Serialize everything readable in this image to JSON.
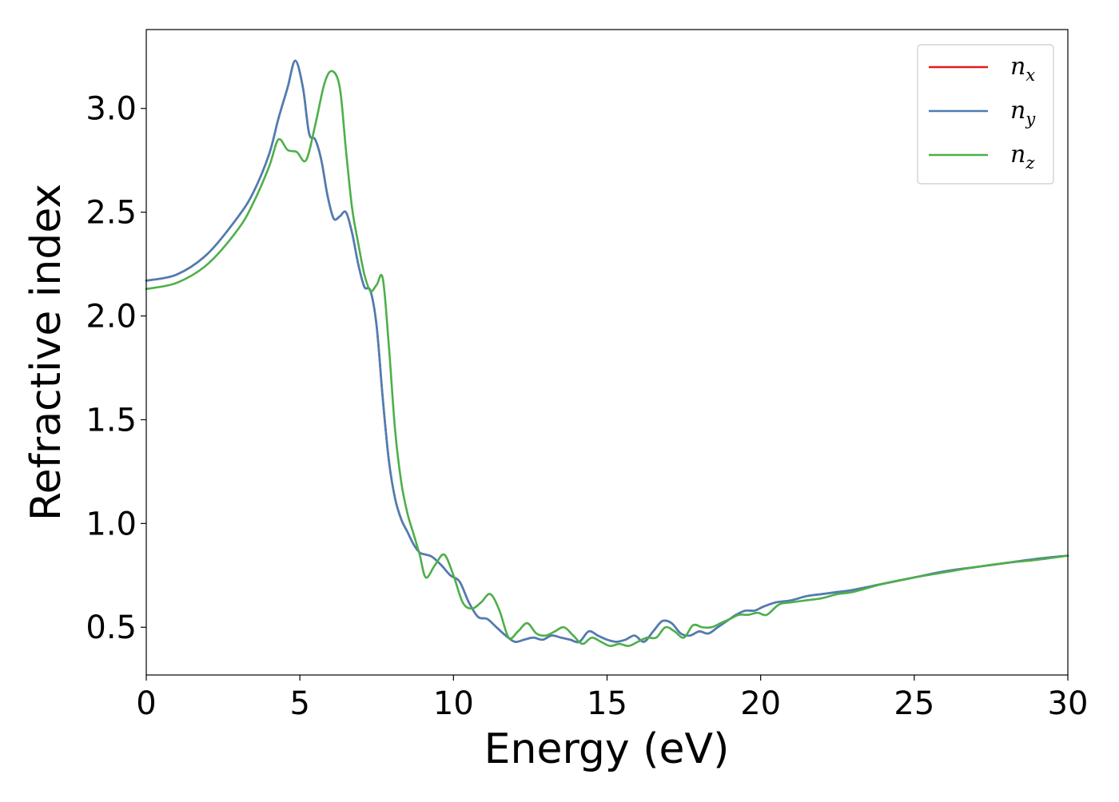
{
  "chart_data": {
    "type": "line",
    "xlabel": "Energy (eV)",
    "ylabel": "Refractive index",
    "xlim": [
      0,
      30
    ],
    "ylim": [
      0.27,
      3.38
    ],
    "x_ticks": [
      0,
      5,
      10,
      15,
      20,
      25,
      30
    ],
    "y_ticks": [
      0.5,
      1.0,
      1.5,
      2.0,
      2.5,
      3.0
    ],
    "x_tick_labels": [
      "0",
      "5",
      "10",
      "15",
      "20",
      "25",
      "30"
    ],
    "y_tick_labels": [
      "0.5",
      "1.0",
      "1.5",
      "2.0",
      "2.5",
      "3.0"
    ],
    "grid": false,
    "legend_position": "top-right",
    "colors": {
      "nx": "#e41a1c",
      "ny": "#4a7fb5",
      "nz": "#4daf4a"
    },
    "series": [
      {
        "name": "n_x",
        "legend_base": "n",
        "legend_sub": "x",
        "color": "#e41a1c",
        "x": [
          0,
          1,
          2,
          3,
          3.5,
          4,
          4.3,
          4.6,
          4.85,
          5.1,
          5.3,
          5.5,
          5.7,
          5.9,
          6.1,
          6.3,
          6.5,
          6.7,
          6.9,
          7.1,
          7.3,
          7.5,
          7.7,
          7.9,
          8.1,
          8.3,
          8.5,
          8.7,
          8.9,
          9.1,
          9.3,
          9.6,
          9.9,
          10.2,
          10.5,
          10.8,
          11.1,
          11.4,
          11.7,
          12.0,
          12.3,
          12.6,
          12.9,
          13.2,
          13.5,
          13.8,
          14.1,
          14.4,
          14.7,
          15.0,
          15.3,
          15.6,
          15.9,
          16.2,
          16.5,
          16.8,
          17.1,
          17.4,
          17.7,
          18.0,
          18.3,
          18.6,
          18.9,
          19.2,
          19.5,
          19.8,
          20.1,
          20.5,
          21.0,
          21.5,
          22.0,
          22.5,
          23.0,
          24.0,
          25.0,
          26.0,
          27.0,
          28.0,
          29.0,
          30.0
        ],
        "values": [
          2.17,
          2.2,
          2.3,
          2.48,
          2.6,
          2.78,
          2.95,
          3.1,
          3.23,
          3.1,
          2.88,
          2.85,
          2.75,
          2.58,
          2.47,
          2.48,
          2.5,
          2.4,
          2.25,
          2.14,
          2.12,
          1.95,
          1.6,
          1.3,
          1.12,
          1.02,
          0.96,
          0.9,
          0.86,
          0.85,
          0.84,
          0.8,
          0.75,
          0.72,
          0.62,
          0.55,
          0.54,
          0.5,
          0.46,
          0.43,
          0.44,
          0.45,
          0.44,
          0.46,
          0.45,
          0.44,
          0.43,
          0.48,
          0.46,
          0.44,
          0.43,
          0.44,
          0.46,
          0.43,
          0.48,
          0.53,
          0.52,
          0.47,
          0.46,
          0.48,
          0.47,
          0.5,
          0.53,
          0.56,
          0.58,
          0.58,
          0.6,
          0.62,
          0.63,
          0.65,
          0.66,
          0.67,
          0.68,
          0.71,
          0.74,
          0.77,
          0.79,
          0.81,
          0.83,
          0.845
        ]
      },
      {
        "name": "n_y",
        "legend_base": "n",
        "legend_sub": "y",
        "color": "#4a7fb5",
        "x": [
          0,
          1,
          2,
          3,
          3.5,
          4,
          4.3,
          4.6,
          4.85,
          5.1,
          5.3,
          5.5,
          5.7,
          5.9,
          6.1,
          6.3,
          6.5,
          6.7,
          6.9,
          7.1,
          7.3,
          7.5,
          7.7,
          7.9,
          8.1,
          8.3,
          8.5,
          8.7,
          8.9,
          9.1,
          9.3,
          9.6,
          9.9,
          10.2,
          10.5,
          10.8,
          11.1,
          11.4,
          11.7,
          12.0,
          12.3,
          12.6,
          12.9,
          13.2,
          13.5,
          13.8,
          14.1,
          14.4,
          14.7,
          15.0,
          15.3,
          15.6,
          15.9,
          16.2,
          16.5,
          16.8,
          17.1,
          17.4,
          17.7,
          18.0,
          18.3,
          18.6,
          18.9,
          19.2,
          19.5,
          19.8,
          20.1,
          20.5,
          21.0,
          21.5,
          22.0,
          22.5,
          23.0,
          24.0,
          25.0,
          26.0,
          27.0,
          28.0,
          29.0,
          30.0
        ],
        "values": [
          2.17,
          2.2,
          2.3,
          2.48,
          2.6,
          2.78,
          2.95,
          3.1,
          3.23,
          3.1,
          2.88,
          2.85,
          2.75,
          2.58,
          2.47,
          2.48,
          2.5,
          2.4,
          2.25,
          2.14,
          2.12,
          1.95,
          1.6,
          1.3,
          1.12,
          1.02,
          0.96,
          0.9,
          0.86,
          0.85,
          0.84,
          0.8,
          0.75,
          0.72,
          0.62,
          0.55,
          0.54,
          0.5,
          0.46,
          0.43,
          0.44,
          0.45,
          0.44,
          0.46,
          0.45,
          0.44,
          0.43,
          0.48,
          0.46,
          0.44,
          0.43,
          0.44,
          0.46,
          0.43,
          0.48,
          0.53,
          0.52,
          0.47,
          0.46,
          0.48,
          0.47,
          0.5,
          0.53,
          0.56,
          0.58,
          0.58,
          0.6,
          0.62,
          0.63,
          0.65,
          0.66,
          0.67,
          0.68,
          0.71,
          0.74,
          0.77,
          0.79,
          0.81,
          0.83,
          0.845
        ]
      },
      {
        "name": "n_z",
        "legend_base": "n",
        "legend_sub": "z",
        "color": "#4daf4a",
        "x": [
          0,
          1,
          2,
          3,
          3.5,
          4,
          4.3,
          4.6,
          4.9,
          5.2,
          5.5,
          5.8,
          6.05,
          6.3,
          6.5,
          6.7,
          6.9,
          7.1,
          7.3,
          7.5,
          7.7,
          7.9,
          8.1,
          8.3,
          8.5,
          8.7,
          8.9,
          9.1,
          9.4,
          9.7,
          10.0,
          10.3,
          10.6,
          10.9,
          11.2,
          11.5,
          11.8,
          12.1,
          12.4,
          12.7,
          13.0,
          13.3,
          13.6,
          13.9,
          14.2,
          14.5,
          14.8,
          15.1,
          15.4,
          15.7,
          16.0,
          16.3,
          16.6,
          16.9,
          17.2,
          17.5,
          17.8,
          18.1,
          18.4,
          18.7,
          19.0,
          19.3,
          19.6,
          19.9,
          20.2,
          20.6,
          21.0,
          21.5,
          22.0,
          22.5,
          23.0,
          24.0,
          25.0,
          26.0,
          27.0,
          28.0,
          29.0,
          30.0
        ],
        "values": [
          2.13,
          2.16,
          2.25,
          2.42,
          2.55,
          2.72,
          2.85,
          2.8,
          2.79,
          2.75,
          2.92,
          3.12,
          3.18,
          3.1,
          2.8,
          2.52,
          2.35,
          2.2,
          2.12,
          2.15,
          2.18,
          1.85,
          1.45,
          1.2,
          1.05,
          0.95,
          0.85,
          0.74,
          0.8,
          0.85,
          0.75,
          0.62,
          0.59,
          0.62,
          0.66,
          0.58,
          0.45,
          0.48,
          0.52,
          0.47,
          0.46,
          0.48,
          0.5,
          0.46,
          0.42,
          0.45,
          0.43,
          0.41,
          0.42,
          0.41,
          0.43,
          0.45,
          0.45,
          0.5,
          0.48,
          0.45,
          0.51,
          0.5,
          0.5,
          0.52,
          0.54,
          0.56,
          0.56,
          0.57,
          0.56,
          0.61,
          0.62,
          0.63,
          0.64,
          0.66,
          0.67,
          0.71,
          0.74,
          0.765,
          0.79,
          0.81,
          0.825,
          0.845
        ]
      }
    ]
  }
}
